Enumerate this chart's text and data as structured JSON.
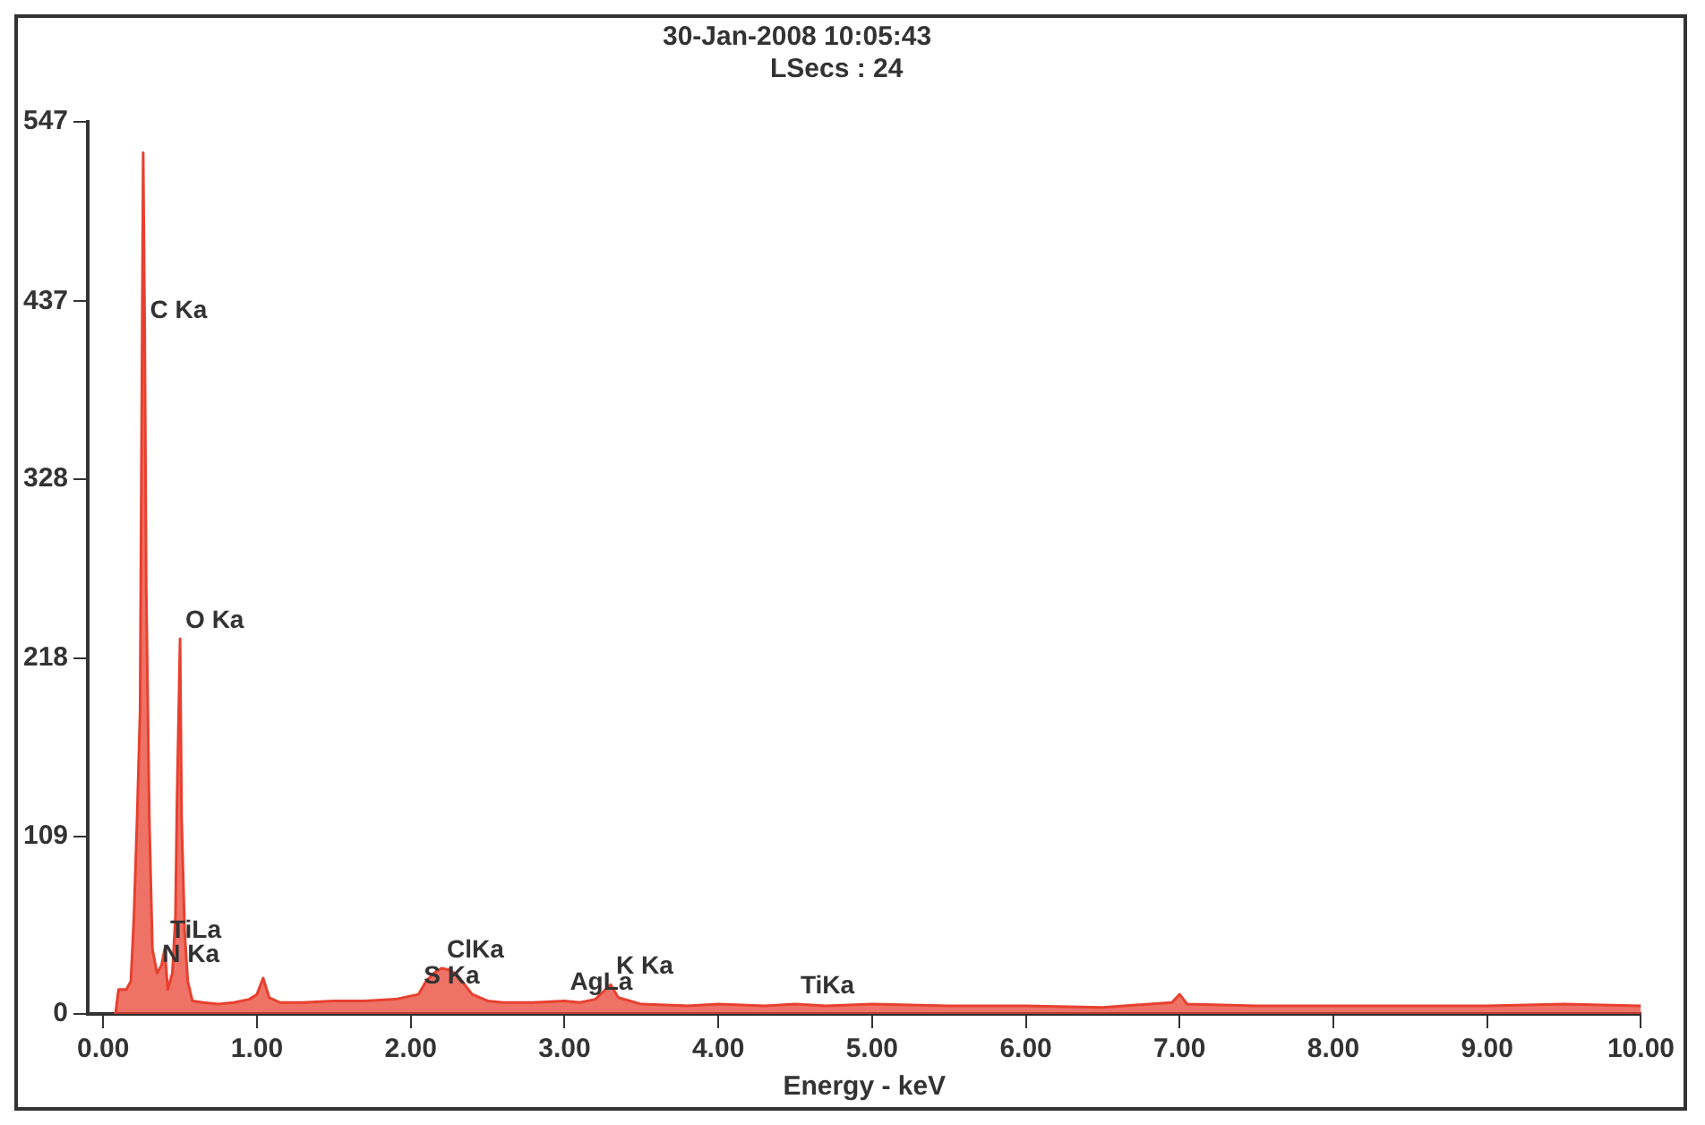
{
  "chart_data": {
    "type": "area",
    "xlabel": "Energy - keV",
    "color": "#e8402f",
    "grid": false,
    "x": [
      0.08,
      0.1,
      0.15,
      0.18,
      0.2,
      0.22,
      0.24,
      0.26,
      0.27,
      0.28,
      0.3,
      0.32,
      0.35,
      0.38,
      0.4,
      0.42,
      0.45,
      0.47,
      0.48,
      0.5,
      0.51,
      0.53,
      0.55,
      0.58,
      0.65,
      0.75,
      0.85,
      0.95,
      1.0,
      1.04,
      1.08,
      1.15,
      1.3,
      1.5,
      1.7,
      1.9,
      2.05,
      2.1,
      2.15,
      2.2,
      2.25,
      2.3,
      2.35,
      2.4,
      2.5,
      2.6,
      2.8,
      3.0,
      3.1,
      3.2,
      3.3,
      3.35,
      3.5,
      3.8,
      4.0,
      4.3,
      4.5,
      4.7,
      5.0,
      5.5,
      6.0,
      6.5,
      6.95,
      7.0,
      7.05,
      7.5,
      8.0,
      8.5,
      9.0,
      9.5,
      10.0
    ],
    "values": [
      0,
      15,
      15,
      20,
      60,
      118,
      186,
      528,
      420,
      261,
      120,
      40,
      25,
      30,
      40,
      15,
      25,
      60,
      130,
      230,
      120,
      50,
      20,
      8,
      7,
      6,
      7,
      9,
      12,
      22,
      10,
      7,
      7,
      8,
      8,
      9,
      12,
      20,
      25,
      28,
      27,
      24,
      18,
      12,
      8,
      7,
      7,
      8,
      7,
      9,
      18,
      10,
      6,
      5,
      6,
      5,
      6,
      5,
      6,
      5,
      5,
      4,
      7,
      12,
      6,
      5,
      5,
      5,
      5,
      6,
      5
    ],
    "xlim": [
      -0.1,
      10.0
    ],
    "xticks": [
      {
        "value": 0,
        "label": "0.00"
      },
      {
        "value": 1,
        "label": "1.00"
      },
      {
        "value": 2,
        "label": "2.00"
      },
      {
        "value": 3,
        "label": "3.00"
      },
      {
        "value": 4,
        "label": "4.00"
      },
      {
        "value": 5,
        "label": "5.00"
      },
      {
        "value": 6,
        "label": "6.00"
      },
      {
        "value": 7,
        "label": "7.00"
      },
      {
        "value": 8,
        "label": "8.00"
      },
      {
        "value": 9,
        "label": "9.00"
      },
      {
        "value": 10,
        "label": "10.00"
      }
    ],
    "ylim": [
      0,
      547
    ],
    "yticks": [
      0,
      109,
      218,
      328,
      437,
      547
    ],
    "annotations": [
      "30-Jan-2008 10:05:43",
      "LSecs : 24",
      {
        "text": "C Ka",
        "x": 0.27,
        "y": 420
      },
      {
        "text": "O Ka",
        "x": 0.5,
        "y": 230
      },
      {
        "text": "TiLa",
        "x": 0.4,
        "y": 40
      },
      {
        "text": "N Ka",
        "x": 0.35,
        "y": 25
      },
      {
        "text": "ClKa",
        "x": 2.2,
        "y": 28
      },
      {
        "text": "S Ka",
        "x": 2.05,
        "y": 12
      },
      {
        "text": "K Ka",
        "x": 3.3,
        "y": 18
      },
      {
        "text": "AgLa",
        "x": 3.0,
        "y": 8
      },
      {
        "text": "TiKa",
        "x": 4.5,
        "y": 6
      }
    ]
  }
}
